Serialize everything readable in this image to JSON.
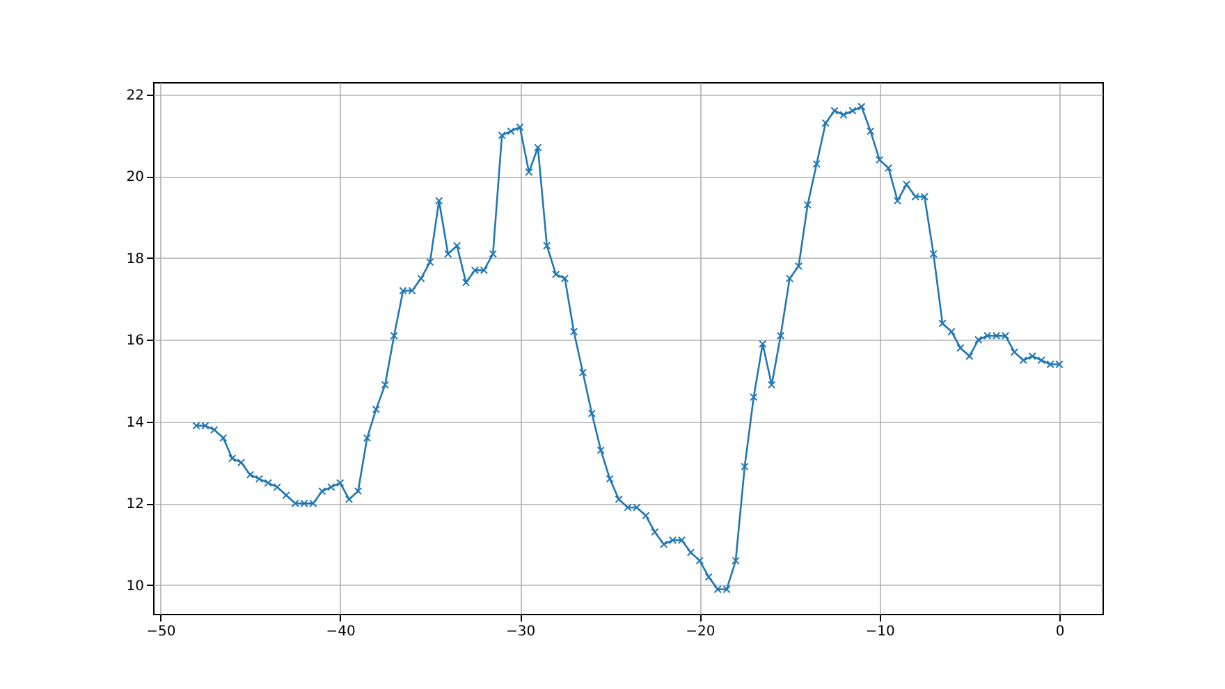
{
  "chart_data": {
    "type": "line",
    "x": [
      -48,
      -47.5,
      -47,
      -46.5,
      -46,
      -45.5,
      -45,
      -44.5,
      -44,
      -43.5,
      -43,
      -42.5,
      -42,
      -41.5,
      -41,
      -40.5,
      -40,
      -39.5,
      -39,
      -38.5,
      -38,
      -37.5,
      -37,
      -36.5,
      -36,
      -35.5,
      -35,
      -34.5,
      -34,
      -33.5,
      -33,
      -32.5,
      -32,
      -31.5,
      -31,
      -30.5,
      -30,
      -29.5,
      -29,
      -28.5,
      -28,
      -27.5,
      -27,
      -26.5,
      -26,
      -25.5,
      -25,
      -24.5,
      -24,
      -23.5,
      -23,
      -22.5,
      -22,
      -21.5,
      -21,
      -20.5,
      -20,
      -19.5,
      -19,
      -18.5,
      -18,
      -17.5,
      -17,
      -16.5,
      -16,
      -15.5,
      -15,
      -14.5,
      -14,
      -13.5,
      -13,
      -12.5,
      -12,
      -11.5,
      -11,
      -10.5,
      -10,
      -9.5,
      -9,
      -8.5,
      -8,
      -7.5,
      -7,
      -6.5,
      -6,
      -5.5,
      -5,
      -4.5,
      -4,
      -3.5,
      -3,
      -2.5,
      -2,
      -1.5,
      -1,
      -0.5,
      0
    ],
    "series": [
      {
        "color": "#1f77b4",
        "values": [
          13.9,
          13.9,
          13.8,
          13.6,
          13.1,
          13.0,
          12.7,
          12.6,
          12.5,
          12.4,
          12.2,
          12.0,
          12.0,
          12.0,
          12.3,
          12.4,
          12.5,
          12.1,
          12.3,
          13.6,
          14.3,
          14.9,
          16.1,
          17.2,
          17.2,
          17.5,
          17.9,
          19.4,
          18.1,
          18.3,
          17.4,
          17.7,
          17.7,
          18.1,
          21.0,
          21.1,
          21.2,
          20.1,
          20.7,
          18.3,
          17.6,
          17.5,
          16.2,
          15.2,
          14.2,
          13.3,
          12.6,
          12.1,
          11.9,
          11.9,
          11.7,
          11.3,
          11.0,
          11.1,
          11.1,
          10.8,
          10.6,
          10.2,
          9.9,
          9.9,
          10.6,
          12.9,
          14.6,
          15.9,
          14.9,
          16.1,
          17.5,
          17.8,
          19.3,
          20.3,
          21.3,
          21.6,
          21.5,
          21.6,
          21.7,
          21.1,
          20.4,
          20.2,
          19.4,
          19.8,
          19.5,
          19.5,
          18.1,
          16.4,
          16.2,
          15.8,
          15.6,
          16.0,
          16.1,
          16.1,
          16.1,
          15.7,
          15.5,
          15.6,
          15.5,
          15.4,
          15.4
        ]
      }
    ],
    "xlim": [
      -50.4,
      2.4
    ],
    "ylim": [
      9.3,
      22.3
    ],
    "xticks": [
      -50,
      -40,
      -30,
      -20,
      -10,
      0
    ],
    "yticks": [
      10,
      12,
      14,
      16,
      18,
      20,
      22
    ],
    "grid": true,
    "marker": "cross",
    "line_style": "solid"
  }
}
